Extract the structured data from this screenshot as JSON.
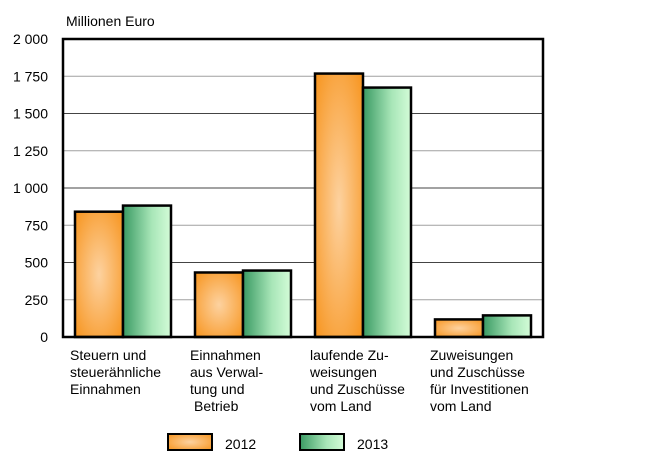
{
  "chart_data": {
    "type": "bar",
    "ylabel": "Millionen Euro",
    "ylim": [
      0,
      2000
    ],
    "yticks": [
      0,
      250,
      500,
      750,
      1000,
      1250,
      1500,
      1750,
      2000
    ],
    "ytick_labels": [
      "0",
      "250",
      "500",
      "750",
      "1 000",
      "1 250",
      "1 500",
      "1 750",
      "2 000"
    ],
    "grid": true,
    "legend_position": "bottom",
    "categories": [
      [
        "Steuern und",
        "steuerähnliche",
        "Einnahmen"
      ],
      [
        "Einnahmen",
        "aus Verwal-",
        "tung und",
        " Betrieb"
      ],
      [
        "laufende Zu-",
        "weisungen",
        "und Zuschüsse",
        "vom Land"
      ],
      [
        "Zuweisungen",
        "und Zuschüsse",
        "für Investitionen",
        "vom Land"
      ]
    ],
    "series": [
      {
        "name": "2012",
        "values": [
          841,
          433,
          1768,
          118
        ],
        "color": "#f7941d"
      },
      {
        "name": "2013",
        "values": [
          882,
          446,
          1674,
          145
        ],
        "color": "#3a9a63"
      }
    ]
  }
}
